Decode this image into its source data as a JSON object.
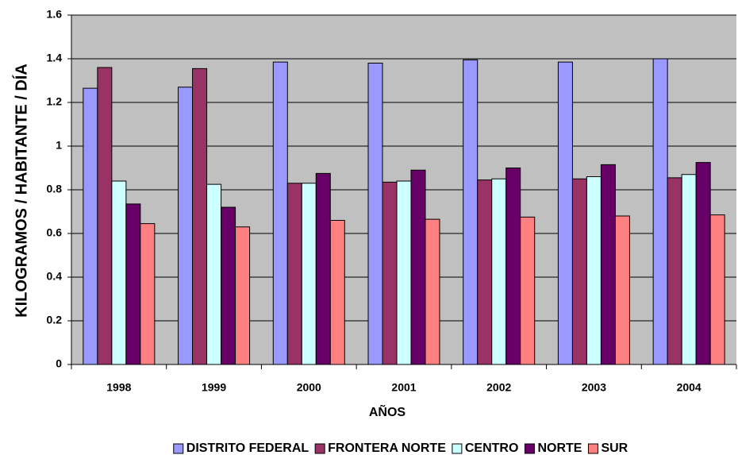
{
  "chart_data": {
    "type": "bar",
    "xlabel": "AÑOS",
    "ylabel": "KILOGRAMOS / HABITANTE / DÍA",
    "categories": [
      "1998",
      "1999",
      "2000",
      "2001",
      "2002",
      "2003",
      "2004"
    ],
    "series": [
      {
        "name": "DISTRITO FEDERAL",
        "color": "#9999ff",
        "values": [
          1.265,
          1.27,
          1.385,
          1.38,
          1.395,
          1.385,
          1.4
        ]
      },
      {
        "name": "FRONTERA NORTE",
        "color": "#993366",
        "values": [
          1.36,
          1.355,
          0.83,
          0.835,
          0.845,
          0.85,
          0.855
        ]
      },
      {
        "name": "CENTRO",
        "color": "#ccffff",
        "values": [
          0.84,
          0.825,
          0.83,
          0.84,
          0.85,
          0.86,
          0.87
        ]
      },
      {
        "name": "NORTE",
        "color": "#660066",
        "values": [
          0.735,
          0.72,
          0.875,
          0.89,
          0.9,
          0.915,
          0.925
        ]
      },
      {
        "name": "SUR",
        "color": "#ff8080",
        "values": [
          0.645,
          0.63,
          0.66,
          0.665,
          0.675,
          0.68,
          0.685
        ]
      }
    ],
    "ylim": [
      0,
      1.6
    ],
    "yticks": [
      0,
      0.2,
      0.4,
      0.6,
      0.8,
      1,
      1.2,
      1.4,
      1.6
    ],
    "grid": true,
    "legend": "bottom",
    "plot_background": "#c0c0c0"
  }
}
